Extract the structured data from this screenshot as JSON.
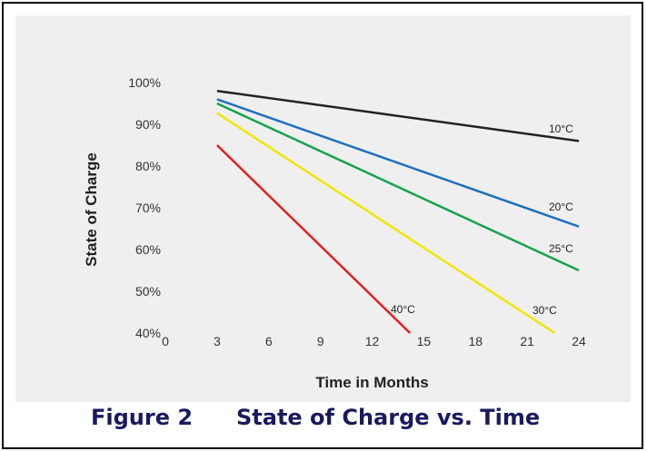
{
  "caption": {
    "figure_number": "Figure 2",
    "figure_title": "State of Charge vs. Time"
  },
  "colors": {
    "background_panel": "#efefef",
    "caption_text": "#1a1a5e"
  },
  "chart_data": {
    "type": "line",
    "title": "",
    "xlabel": "Time in Months",
    "ylabel": "State of Charge",
    "xlim": [
      0,
      24
    ],
    "ylim": [
      40,
      100
    ],
    "x_ticks": [
      "0",
      "3",
      "6",
      "9",
      "12",
      "15",
      "18",
      "21",
      "24"
    ],
    "y_ticks": [
      "40%",
      "50%",
      "60%",
      "70%",
      "80%",
      "90%",
      "100%"
    ],
    "grid": false,
    "series": [
      {
        "name": "10°C",
        "color": "#222222",
        "points": [
          [
            3,
            98
          ],
          [
            24,
            86
          ]
        ]
      },
      {
        "name": "20°C",
        "color": "#1f6fbf",
        "points": [
          [
            3,
            96
          ],
          [
            24,
            65.5
          ]
        ]
      },
      {
        "name": "25°C",
        "color": "#16a34a",
        "points": [
          [
            3,
            95
          ],
          [
            24,
            55
          ]
        ]
      },
      {
        "name": "30°C",
        "color": "#f2e600",
        "points": [
          [
            3,
            92.7
          ],
          [
            22.6,
            40
          ]
        ]
      },
      {
        "name": "40°C",
        "color": "#e02020",
        "points": [
          [
            3,
            85
          ],
          [
            14.2,
            40
          ]
        ]
      }
    ]
  }
}
